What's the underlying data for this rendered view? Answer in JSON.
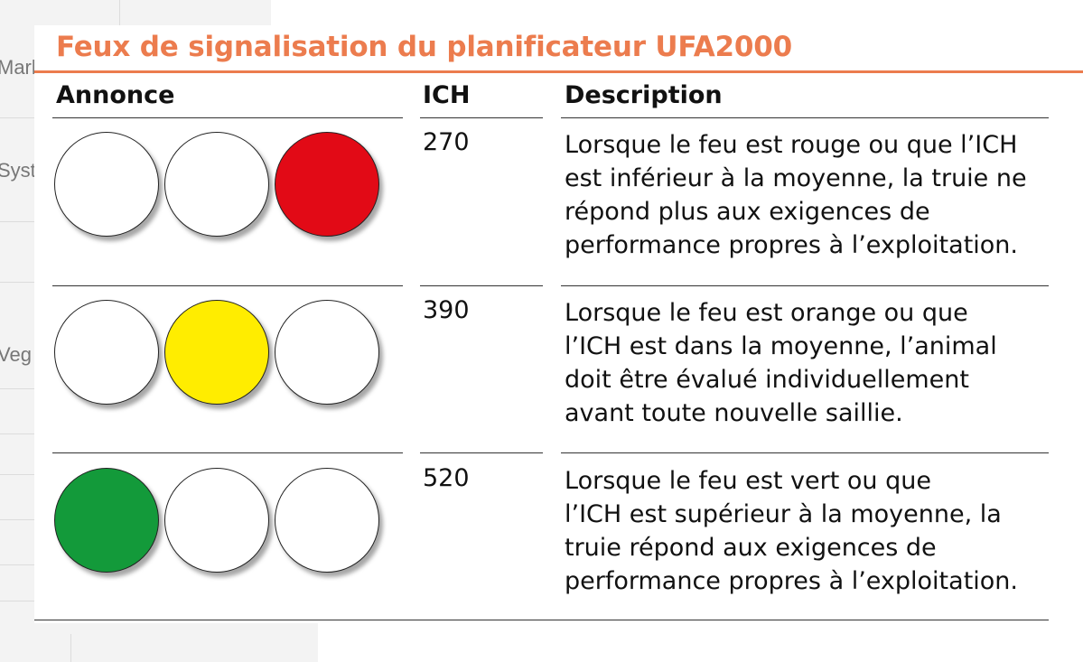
{
  "background": {
    "fragments": [
      "Mark",
      "Syste",
      "Veg"
    ]
  },
  "title": "Feux de signalisation du planificateur UFA2000",
  "headers": {
    "annonce": "Annonce",
    "ich": "ICH",
    "description": "Description"
  },
  "colors": {
    "accent": "#ec7c4e",
    "red": "#e20a16",
    "yellow": "#ffed00",
    "green": "#139a3a",
    "off": "#ffffff"
  },
  "rows": [
    {
      "ich": "270",
      "lights": [
        "off",
        "off",
        "red"
      ],
      "description": [
        "Lorsque le feu est rouge ou que l’ICH",
        "est inférieur à la moyenne, la truie ne",
        "répond plus aux exigences de",
        "performance propres à l’exploitation."
      ]
    },
    {
      "ich": "390",
      "lights": [
        "off",
        "yellow",
        "off"
      ],
      "description": [
        "Lorsque le feu est orange ou que",
        "l’ICH est dans la moyenne, l’animal",
        "doit être évalué individuellement",
        "avant toute nouvelle saillie."
      ]
    },
    {
      "ich": "520",
      "lights": [
        "green",
        "off",
        "off"
      ],
      "description": [
        "Lorsque le feu est vert ou que",
        "l’ICH est supérieur à la moyenne, la",
        "truie répond aux exigences de",
        "performance propres à l’exploitation."
      ]
    }
  ]
}
